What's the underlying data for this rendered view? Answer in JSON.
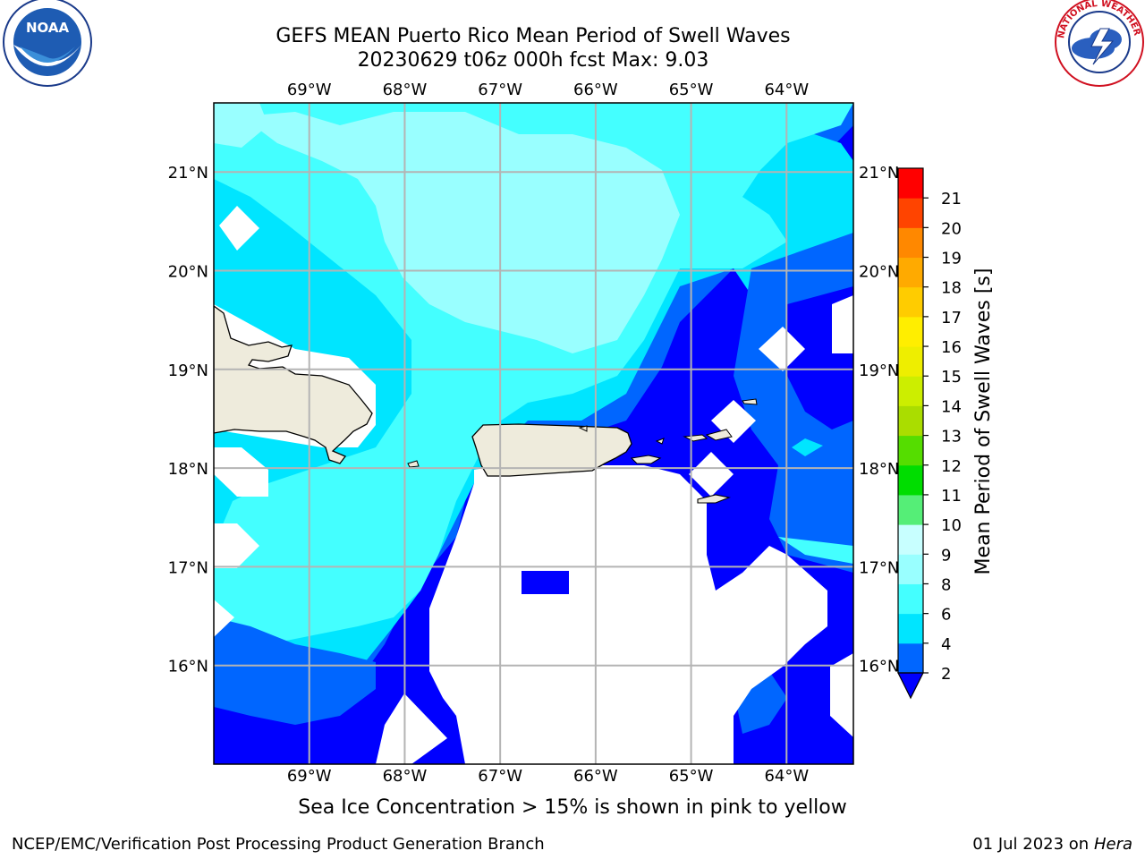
{
  "header": {
    "title_line1": "GEFS MEAN Puerto Rico Mean Period of Swell Waves",
    "title_line2": "20230629 t06z 000h fcst   Max: 9.03",
    "logo_left": "NOAA",
    "logo_left_ring": "NATIONAL OCEANIC AND ATMOSPHERIC ADMINISTRATION · U.S. DEPARTMENT OF COMMERCE",
    "logo_right_ring": "NATIONAL WEATHER SERVICE"
  },
  "map": {
    "lon_labels": [
      "69°W",
      "68°W",
      "67°W",
      "66°W",
      "65°W",
      "64°W"
    ],
    "lat_labels": [
      "21°N",
      "20°N",
      "19°N",
      "18°N",
      "17°N",
      "16°N"
    ],
    "lon_range": [
      -70.0,
      -63.3
    ],
    "lat_range": [
      15.0,
      21.7
    ]
  },
  "colorbar": {
    "label": "Mean Period of Swell Waves [s]",
    "ticks": [
      "2",
      "4",
      "6",
      "8",
      "9",
      "10",
      "11",
      "12",
      "13",
      "14",
      "15",
      "16",
      "17",
      "18",
      "19",
      "20",
      "21"
    ],
    "colors": [
      "#0066ff",
      "#00e5ff",
      "#44ffff",
      "#99ffff",
      "#c8ffff",
      "#55ee77",
      "#00dd00",
      "#55dd00",
      "#aadd00",
      "#ccee00",
      "#eeee00",
      "#ffee00",
      "#ffcc00",
      "#ffaa00",
      "#ff8800",
      "#ff4400",
      "#ff0000"
    ],
    "underflow_color": "#0000ff",
    "land_color": "#eeebdc",
    "grid_color": "#b4b4b4"
  },
  "footer": {
    "note": "Sea Ice Concentration > 15% is shown in pink to yellow",
    "left": "NCEP/EMC/Verification Post Processing Product Generation Branch",
    "right_date": "01 Jul 2023 on",
    "right_host": "Hera"
  }
}
